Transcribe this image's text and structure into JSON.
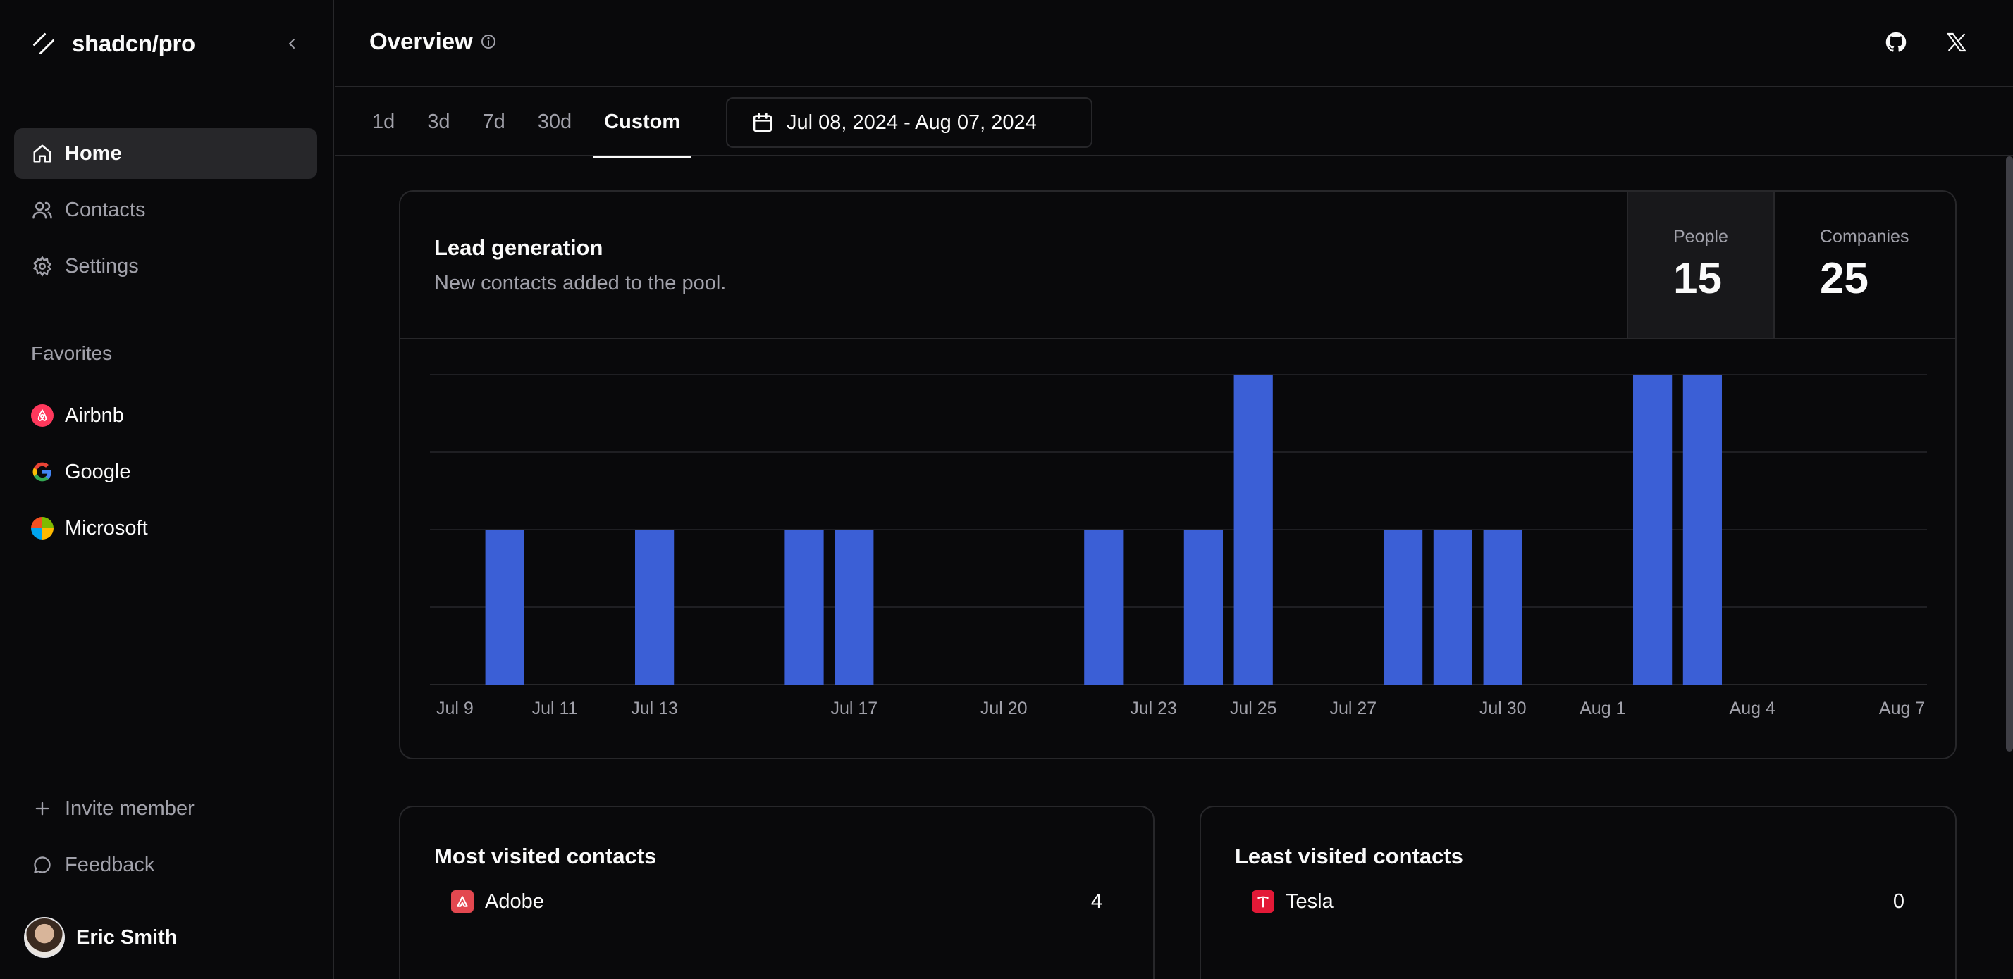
{
  "brand": {
    "name": "shadcn/pro"
  },
  "sidebar": {
    "nav": [
      {
        "label": "Home",
        "icon": "home-icon",
        "active": true
      },
      {
        "label": "Contacts",
        "icon": "users-icon",
        "active": false
      },
      {
        "label": "Settings",
        "icon": "gear-icon",
        "active": false
      }
    ],
    "favorites_label": "Favorites",
    "favorites": [
      {
        "label": "Airbnb",
        "icon": "airbnb-logo"
      },
      {
        "label": "Google",
        "icon": "google-logo"
      },
      {
        "label": "Microsoft",
        "icon": "microsoft-logo"
      }
    ],
    "invite_label": "Invite member",
    "feedback_label": "Feedback",
    "user_name": "Eric Smith"
  },
  "header": {
    "title": "Overview",
    "icons": [
      "github-icon",
      "x-icon"
    ]
  },
  "range_tabs": {
    "tabs": [
      "1d",
      "3d",
      "7d",
      "30d",
      "Custom"
    ],
    "active": "Custom",
    "date_range": "Jul 08, 2024 - Aug 07, 2024"
  },
  "lead_card": {
    "title": "Lead generation",
    "subtitle": "New contacts added to the pool.",
    "stats": [
      {
        "label": "People",
        "value": "15"
      },
      {
        "label": "Companies",
        "value": "25"
      }
    ]
  },
  "chart_data": {
    "type": "bar",
    "categories": [
      "Jul 9",
      "Jul 10",
      "Jul 11",
      "Jul 12",
      "Jul 13",
      "Jul 14",
      "Jul 15",
      "Jul 16",
      "Jul 17",
      "Jul 18",
      "Jul 19",
      "Jul 20",
      "Jul 21",
      "Jul 22",
      "Jul 23",
      "Jul 24",
      "Jul 25",
      "Jul 26",
      "Jul 27",
      "Jul 28",
      "Jul 29",
      "Jul 30",
      "Jul 31",
      "Aug 1",
      "Aug 2",
      "Aug 3",
      "Aug 4",
      "Aug 5",
      "Aug 6",
      "Aug 7"
    ],
    "values": [
      0,
      1,
      0,
      0,
      1,
      0,
      0,
      1,
      1,
      0,
      0,
      0,
      0,
      1,
      0,
      1,
      2,
      0,
      0,
      1,
      1,
      1,
      0,
      0,
      2,
      2,
      0,
      0,
      0,
      0
    ],
    "tick_labels": [
      "Jul 9",
      "Jul 11",
      "Jul 13",
      "Jul 17",
      "Jul 20",
      "Jul 23",
      "Jul 25",
      "Jul 27",
      "Jul 30",
      "Aug 1",
      "Aug 4",
      "Aug 7"
    ],
    "ylim": [
      0,
      2
    ],
    "grid": true,
    "bar_color": "#3b5fd6",
    "title": "",
    "xlabel": "",
    "ylabel": ""
  },
  "most_visited": {
    "title": "Most visited contacts",
    "rows": [
      {
        "name": "Adobe",
        "count": "4",
        "color": "#e34850"
      }
    ]
  },
  "least_visited": {
    "title": "Least visited contacts",
    "rows": [
      {
        "name": "Tesla",
        "count": "0",
        "color": "#e31937"
      }
    ]
  }
}
